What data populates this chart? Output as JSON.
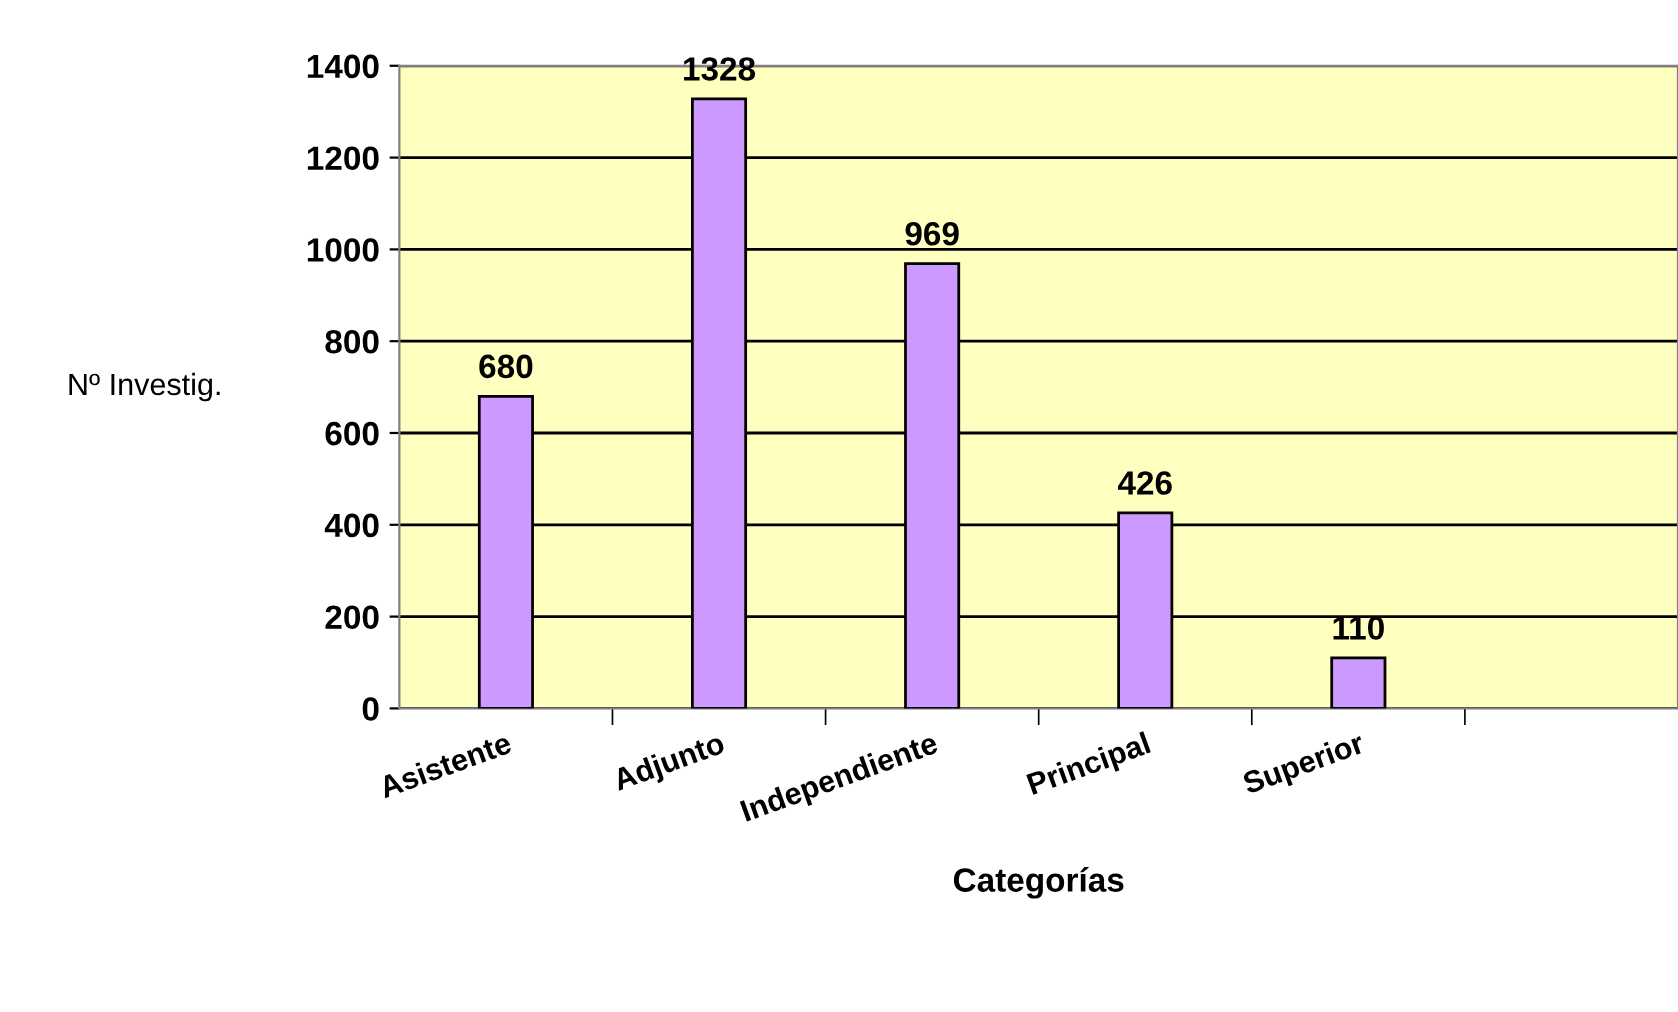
{
  "chart_data": {
    "type": "bar",
    "xlabel": "Categorías",
    "ylabel": "Nº Investig.",
    "categories": [
      "Asistente",
      "Adjunto",
      "Independiente",
      "Principal",
      "Superior",
      null
    ],
    "values": [
      680,
      1328,
      969,
      426,
      110,
      null
    ],
    "color": "#cc99ff",
    "data_labels": true,
    "grid": "y",
    "legend": false,
    "ylim": [
      0,
      1400
    ],
    "yticks": [
      0,
      200,
      400,
      600,
      800,
      1000,
      1200,
      1400
    ]
  }
}
